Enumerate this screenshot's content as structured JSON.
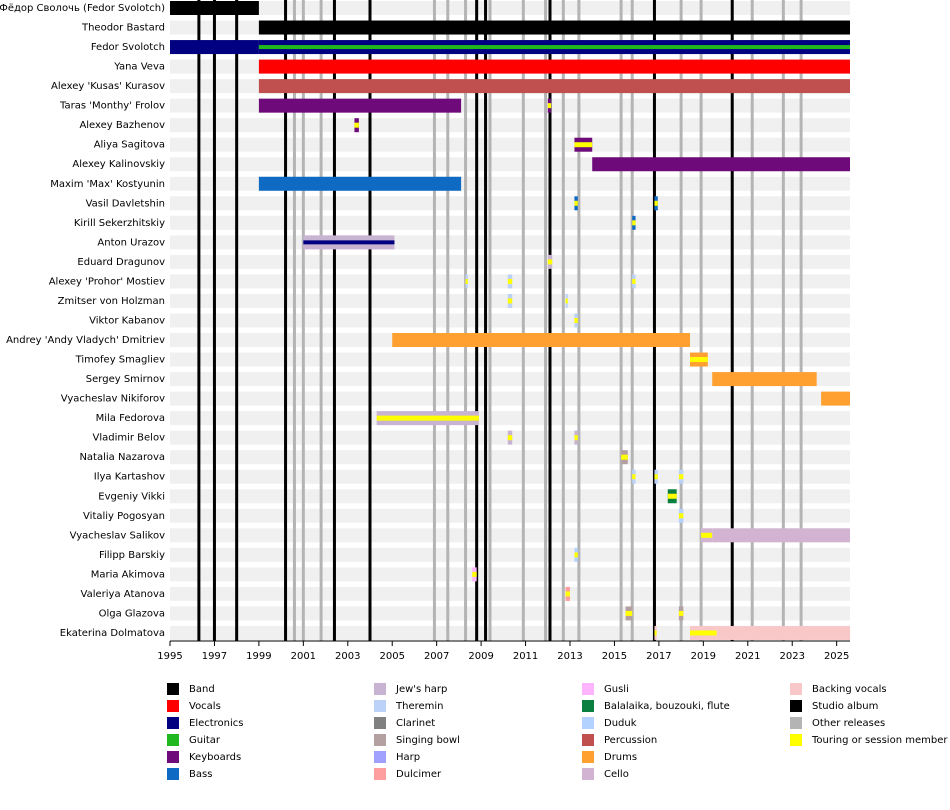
{
  "chart_data": {
    "type": "timeline",
    "xlim": [
      1995,
      2025.6
    ],
    "xticks": [
      1995,
      1997,
      1999,
      2001,
      2003,
      2005,
      2007,
      2009,
      2011,
      2013,
      2015,
      2017,
      2019,
      2021,
      2023,
      2025
    ],
    "roles": [
      {
        "name": "Band",
        "color": "#000000"
      },
      {
        "name": "Vocals",
        "color": "#ff0000"
      },
      {
        "name": "Electronics",
        "color": "#000080"
      },
      {
        "name": "Guitar",
        "color": "#1fb81f"
      },
      {
        "name": "Keyboards",
        "color": "#6e0a7a"
      },
      {
        "name": "Bass",
        "color": "#0f6ac4"
      },
      {
        "name": "Jew's harp",
        "color": "#c8b4d2"
      },
      {
        "name": "Theremin",
        "color": "#bcd2f8"
      },
      {
        "name": "Clarinet",
        "color": "#808080"
      },
      {
        "name": "Singing bowl",
        "color": "#b4a0a0"
      },
      {
        "name": "Harp",
        "color": "#a0a0ff"
      },
      {
        "name": "Dulcimer",
        "color": "#ff9e9e"
      },
      {
        "name": "Gusli",
        "color": "#ffb4ff"
      },
      {
        "name": "Balalaika, bouzouki, flute",
        "color": "#0a8040"
      },
      {
        "name": "Duduk",
        "color": "#b4d2ff"
      },
      {
        "name": "Percussion",
        "color": "#c05050"
      },
      {
        "name": "Drums",
        "color": "#ffa030"
      },
      {
        "name": "Cello",
        "color": "#d2b4d2"
      },
      {
        "name": "Backing vocals",
        "color": "#f8c8c8"
      }
    ],
    "releases": [
      {
        "name": "Studio album",
        "color": "#000000",
        "x": [
          1996.3,
          1997.0,
          1998.0,
          2000.2,
          2002.4,
          2004.0,
          2008.8,
          2009.2,
          2012.1,
          2016.8,
          2020.3
        ]
      },
      {
        "name": "Other releases",
        "color": "#b4b4b4",
        "x": [
          2000.6,
          2001.0,
          2001.8,
          2006.9,
          2007.5,
          2008.3,
          2009.4,
          2010.9,
          2011.9,
          2012.7,
          2013.4,
          2015.3,
          2015.8,
          2018.0,
          2018.9,
          2021.2,
          2022.6,
          2023.4
        ]
      }
    ],
    "touring": {
      "name": "Touring or session member",
      "color": "#ffff00"
    },
    "members": [
      {
        "name": "Фёдор Сволочь (Fedor Svolotch)",
        "bars": [
          {
            "start": 1995,
            "end": 1999,
            "role": "Band"
          }
        ]
      },
      {
        "name": "Theodor Bastard",
        "bars": [
          {
            "start": 1999,
            "end": 2025.6,
            "role": "Band"
          }
        ]
      },
      {
        "name": "Fedor Svolotch",
        "bars": [
          {
            "start": 1995,
            "end": 1999,
            "role": "Electronics"
          },
          {
            "start": 1999,
            "end": 2025.6,
            "role": "Electronics",
            "stripe": "Guitar"
          }
        ]
      },
      {
        "name": "Yana Veva",
        "bars": [
          {
            "start": 1999,
            "end": 2025.6,
            "role": "Vocals"
          }
        ]
      },
      {
        "name": "Alexey 'Kusas' Kurasov",
        "bars": [
          {
            "start": 1999,
            "end": 2025.6,
            "role": "Percussion"
          }
        ]
      },
      {
        "name": "Taras 'Monthy' Frolov",
        "bars": [
          {
            "start": 1999,
            "end": 2008.1,
            "role": "Keyboards"
          },
          {
            "start": 2012.0,
            "end": 2012.15,
            "role": "Keyboards",
            "touring": true
          }
        ]
      },
      {
        "name": "Alexey Bazhenov",
        "bars": [
          {
            "start": 2003.3,
            "end": 2003.5,
            "role": "Keyboards",
            "touring": true
          }
        ]
      },
      {
        "name": "Aliya Sagitova",
        "bars": [
          {
            "start": 2013.2,
            "end": 2014.0,
            "role": "Keyboards",
            "touring": true
          }
        ]
      },
      {
        "name": "Alexey Kalinovskiy",
        "bars": [
          {
            "start": 2014.0,
            "end": 2025.6,
            "role": "Keyboards"
          }
        ]
      },
      {
        "name": "Maxim 'Max' Kostyunin",
        "bars": [
          {
            "start": 1999,
            "end": 2008.1,
            "role": "Bass"
          }
        ]
      },
      {
        "name": "Vasil Davletshin",
        "bars": [
          {
            "start": 2013.2,
            "end": 2013.35,
            "role": "Bass",
            "touring": true
          },
          {
            "start": 2016.8,
            "end": 2016.95,
            "role": "Bass",
            "touring": true
          }
        ]
      },
      {
        "name": "Kirill Sekerzhitskiy",
        "bars": [
          {
            "start": 2015.8,
            "end": 2015.95,
            "role": "Bass",
            "touring": true
          }
        ]
      },
      {
        "name": "Anton Urazov",
        "bars": [
          {
            "start": 2001.0,
            "end": 2005.1,
            "role": "Jew's harp",
            "stripe": "Electronics"
          }
        ]
      },
      {
        "name": "Eduard Dragunov",
        "bars": [
          {
            "start": 2012.0,
            "end": 2012.2,
            "role": "Jew's harp",
            "touring": true
          }
        ]
      },
      {
        "name": "Alexey 'Prohor' Mostiev",
        "bars": [
          {
            "start": 2008.3,
            "end": 2008.4,
            "role": "Theremin",
            "touring": true
          },
          {
            "start": 2010.2,
            "end": 2010.4,
            "role": "Theremin",
            "touring": true
          },
          {
            "start": 2015.8,
            "end": 2015.95,
            "role": "Theremin",
            "touring": true
          }
        ]
      },
      {
        "name": "Zmitser von Holzman",
        "bars": [
          {
            "start": 2010.2,
            "end": 2010.4,
            "role": "Theremin",
            "touring": true
          },
          {
            "start": 2012.8,
            "end": 2012.9,
            "role": "Theremin",
            "touring": true
          }
        ]
      },
      {
        "name": "Viktor Kabanov",
        "bars": [
          {
            "start": 2013.2,
            "end": 2013.35,
            "role": "Theremin",
            "touring": true
          }
        ]
      },
      {
        "name": "Andrey 'Andy Vladych' Dmitriev",
        "bars": [
          {
            "start": 2005.0,
            "end": 2018.4,
            "role": "Drums"
          }
        ]
      },
      {
        "name": "Timofey Smagliev",
        "bars": [
          {
            "start": 2018.4,
            "end": 2019.2,
            "role": "Drums",
            "touring": true
          }
        ]
      },
      {
        "name": "Sergey Smirnov",
        "bars": [
          {
            "start": 2019.4,
            "end": 2024.1,
            "role": "Drums"
          }
        ]
      },
      {
        "name": "Vyacheslav Nikiforov",
        "bars": [
          {
            "start": 2024.3,
            "end": 2025.6,
            "role": "Drums"
          }
        ]
      },
      {
        "name": "Mila Fedorova",
        "bars": [
          {
            "start": 2004.3,
            "end": 2008.9,
            "role": "Jew's harp",
            "touring": true
          }
        ]
      },
      {
        "name": "Vladimir Belov",
        "bars": [
          {
            "start": 2010.2,
            "end": 2010.4,
            "role": "Jew's harp",
            "touring": true
          },
          {
            "start": 2013.2,
            "end": 2013.35,
            "role": "Jew's harp",
            "touring": true
          }
        ]
      },
      {
        "name": "Natalia Nazarova",
        "bars": [
          {
            "start": 2015.3,
            "end": 2015.6,
            "role": "Singing bowl",
            "touring": true
          }
        ]
      },
      {
        "name": "Ilya Kartashov",
        "bars": [
          {
            "start": 2015.8,
            "end": 2015.95,
            "role": "Theremin",
            "touring": true
          },
          {
            "start": 2016.8,
            "end": 2016.95,
            "role": "Theremin",
            "touring": true
          },
          {
            "start": 2017.9,
            "end": 2018.1,
            "role": "Theremin",
            "touring": true
          }
        ]
      },
      {
        "name": "Evgeniy Vikki",
        "bars": [
          {
            "start": 2017.4,
            "end": 2017.8,
            "role": "Balalaika, bouzouki, flute",
            "touring": true
          }
        ]
      },
      {
        "name": "Vitaliy Pogosyan",
        "bars": [
          {
            "start": 2017.9,
            "end": 2018.1,
            "role": "Duduk",
            "touring": true
          }
        ]
      },
      {
        "name": "Vyacheslav Salikov",
        "bars": [
          {
            "start": 2018.9,
            "end": 2019.4,
            "role": "Cello",
            "touring": true
          },
          {
            "start": 2019.4,
            "end": 2025.6,
            "role": "Cello"
          }
        ]
      },
      {
        "name": "Filipp Barskiy",
        "bars": [
          {
            "start": 2013.2,
            "end": 2013.35,
            "role": "Duduk",
            "touring": true
          }
        ]
      },
      {
        "name": "Maria Akimova",
        "bars": [
          {
            "start": 2008.6,
            "end": 2008.8,
            "role": "Gusli",
            "touring": true
          }
        ]
      },
      {
        "name": "Valeriya Atanova",
        "bars": [
          {
            "start": 2012.8,
            "end": 2013.0,
            "role": "Dulcimer",
            "touring": true
          }
        ]
      },
      {
        "name": "Olga Glazova",
        "bars": [
          {
            "start": 2015.5,
            "end": 2015.8,
            "role": "Singing bowl",
            "touring": true
          },
          {
            "start": 2017.9,
            "end": 2018.1,
            "role": "Singing bowl",
            "touring": true
          }
        ]
      },
      {
        "name": "Ekaterina Dolmatova",
        "bars": [
          {
            "start": 2016.8,
            "end": 2016.9,
            "role": "Backing vocals",
            "touring": true
          },
          {
            "start": 2018.4,
            "end": 2019.6,
            "role": "Backing vocals",
            "touring": true
          },
          {
            "start": 2019.6,
            "end": 2025.6,
            "role": "Backing vocals"
          }
        ]
      }
    ]
  }
}
